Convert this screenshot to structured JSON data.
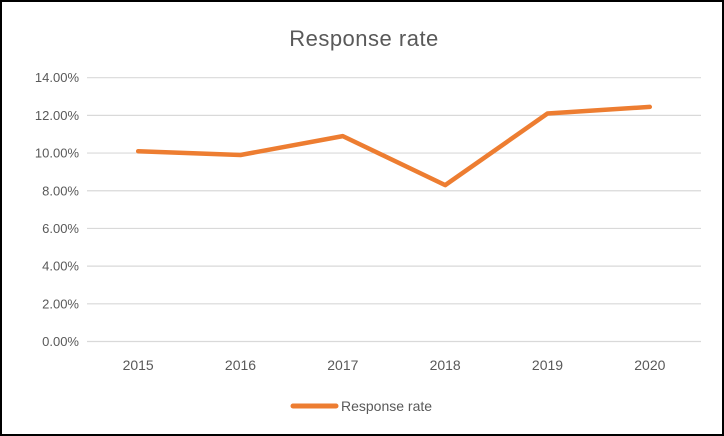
{
  "window": {
    "background_color": "#FFFFFF",
    "border_color": "#000000"
  },
  "chart_data": {
    "type": "line",
    "title": "Response rate",
    "categories": [
      "2015",
      "2016",
      "2017",
      "2018",
      "2019",
      "2020"
    ],
    "series": [
      {
        "name": "Response rate",
        "color": "#ED7D31",
        "values": [
          10.1,
          9.9,
          10.9,
          8.3,
          12.1,
          12.45
        ]
      }
    ],
    "xlabel": "",
    "ylabel": "",
    "ylim": [
      0,
      14
    ],
    "y_tick_step": 2,
    "y_tick_labels": [
      "0.00%",
      "2.00%",
      "4.00%",
      "6.00%",
      "8.00%",
      "10.00%",
      "12.00%",
      "14.00%"
    ],
    "grid": true,
    "gridline_color": "#D9D9D9",
    "text_color": "#595959",
    "legend_position": "bottom"
  }
}
